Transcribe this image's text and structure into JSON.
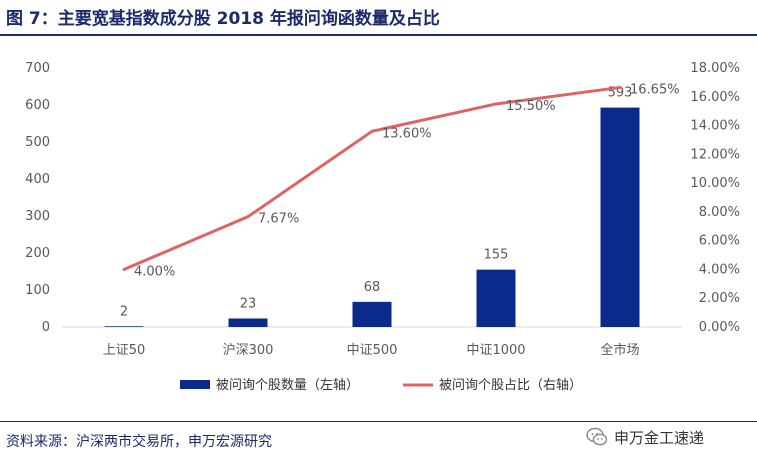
{
  "header": {
    "title": "图 7：主要宽基指数成分股 2018 年报问询函数量及占比"
  },
  "footer": {
    "source": "资料来源：沪深两市交易所，申万宏源研究",
    "watermark": "申万金工速递"
  },
  "colors": {
    "bar": "#0b2a8c",
    "line": "#e06363",
    "title": "#1a2a6c"
  },
  "chart_data": {
    "type": "bar",
    "categories": [
      "上证50",
      "沪深300",
      "中证500",
      "中证1000",
      "全市场"
    ],
    "series": [
      {
        "name": "被问询个股数量（左轴）",
        "type": "bar",
        "axis": "left",
        "values": [
          2,
          23,
          68,
          155,
          593
        ],
        "labels": [
          "2",
          "23",
          "68",
          "155",
          "593"
        ]
      },
      {
        "name": "被问询个股占比（右轴）",
        "type": "line",
        "axis": "right",
        "values": [
          4.0,
          7.67,
          13.6,
          15.5,
          16.65
        ],
        "labels": [
          "4.00%",
          "7.67%",
          "13.60%",
          "15.50%",
          "16.65%"
        ]
      }
    ],
    "y_left": {
      "min": 0,
      "max": 700,
      "ticks": [
        "0",
        "100",
        "200",
        "300",
        "400",
        "500",
        "600",
        "700"
      ]
    },
    "y_right": {
      "min": 0,
      "max": 18,
      "ticks": [
        "0.00%",
        "2.00%",
        "4.00%",
        "6.00%",
        "8.00%",
        "10.00%",
        "12.00%",
        "14.00%",
        "16.00%",
        "18.00%"
      ]
    },
    "grid": false,
    "legend_position": "bottom"
  }
}
